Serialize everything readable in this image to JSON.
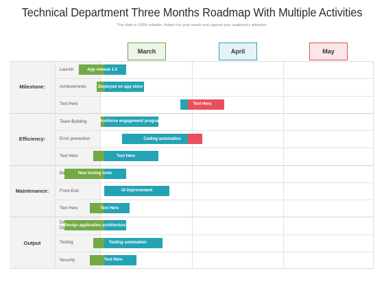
{
  "title": "Technical Department Three Months Roadmap With Multiple Activities",
  "subtitle": "This slide is 100% editable. Adapt it to your needs and capture your audience's attention.",
  "months": [
    "March",
    "April",
    "May"
  ],
  "colors": {
    "green": "#72aa45",
    "teal": "#24a3b4",
    "red": "#ea4f5c",
    "label_bg": "#f3f3f3"
  },
  "groups": [
    {
      "label": "Milestone:",
      "rows": [
        {
          "label": "Launch",
          "bar": {
            "text": "App release 1.0",
            "segments": [
              [
                "green",
                0.19,
                0.26
              ],
              [
                "teal",
                0.26,
                0.32
              ]
            ]
          }
        },
        {
          "label": "Achievements",
          "bar": {
            "text": "Deployed on app store",
            "segments": [
              [
                "green",
                0.24,
                0.26
              ],
              [
                "teal",
                0.26,
                0.37
              ]
            ]
          }
        },
        {
          "label": "Text Here",
          "bar": {
            "text": "Text Here",
            "segments": [
              [
                "teal",
                0.47,
                0.49
              ],
              [
                "red",
                0.49,
                0.59
              ]
            ]
          }
        }
      ]
    },
    {
      "label": "Efficiency:",
      "rows": [
        {
          "label": "Team-Building",
          "bar": {
            "text": "Workforce engagement program",
            "segments": [
              [
                "green",
                0.25,
                0.26
              ],
              [
                "teal",
                0.26,
                0.41
              ]
            ]
          }
        },
        {
          "label": "Error prevention",
          "bar": {
            "text": "Coding automation",
            "segments": [
              [
                "teal",
                0.31,
                0.49
              ],
              [
                "red",
                0.49,
                0.53
              ]
            ]
          }
        },
        {
          "label": "Text Here",
          "bar": {
            "text": "Text Here",
            "segments": [
              [
                "green",
                0.23,
                0.26
              ],
              [
                "teal",
                0.26,
                0.41
              ]
            ]
          }
        }
      ]
    },
    {
      "label": "Maintenance:",
      "rows": [
        {
          "label": "Back-End",
          "bar": {
            "text": "New testing tools",
            "segments": [
              [
                "green",
                0.15,
                0.26
              ],
              [
                "teal",
                0.26,
                0.32
              ]
            ]
          }
        },
        {
          "label": "Front-End",
          "bar": {
            "text": "UI improvement",
            "segments": [
              [
                "teal",
                0.26,
                0.44
              ]
            ]
          }
        },
        {
          "label": "Text Here",
          "bar": {
            "text": "Text Here",
            "segments": [
              [
                "green",
                0.22,
                0.26
              ],
              [
                "teal",
                0.26,
                0.33
              ]
            ]
          }
        }
      ]
    },
    {
      "label": "Output",
      "rows": [
        {
          "label": "Development & Design",
          "bar": {
            "text": "Design application architecture",
            "segments": [
              [
                "green",
                0.15,
                0.26
              ],
              [
                "teal",
                0.26,
                0.32
              ]
            ]
          }
        },
        {
          "label": "Testing",
          "bar": {
            "text": "Testing automation",
            "segments": [
              [
                "green",
                0.23,
                0.26
              ],
              [
                "teal",
                0.26,
                0.42
              ]
            ]
          }
        },
        {
          "label": "Security",
          "bar": {
            "text": "Text Here",
            "segments": [
              [
                "green",
                0.22,
                0.26
              ],
              [
                "teal",
                0.26,
                0.35
              ]
            ]
          }
        }
      ]
    }
  ]
}
